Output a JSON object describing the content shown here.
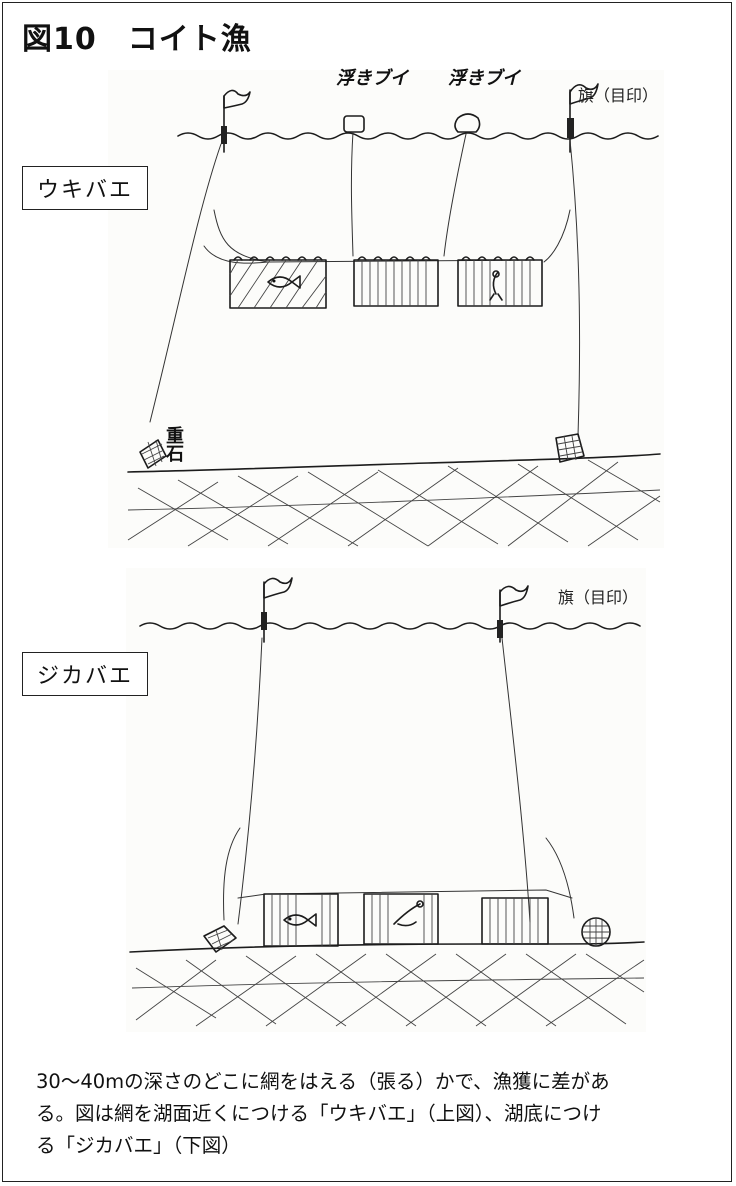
{
  "figure": {
    "title": "図10　コイト漁"
  },
  "upper": {
    "type_label": "ウキバエ",
    "float_label_1": "浮きブイ",
    "float_label_2": "浮きブイ",
    "flag_label": "旗（目印）",
    "weight_label": "重石"
  },
  "lower": {
    "type_label": "ジカバエ",
    "flag_label": "旗（目印）"
  },
  "caption": {
    "line1": "30～40mの深さのどこに網をはえる（張る）かで、漁獲に差があ",
    "line2": "る。図は網を湖面近くにつける「ウキバエ」（上図）、湖底につけ",
    "line3": "る「ジカバエ」（下図）"
  }
}
